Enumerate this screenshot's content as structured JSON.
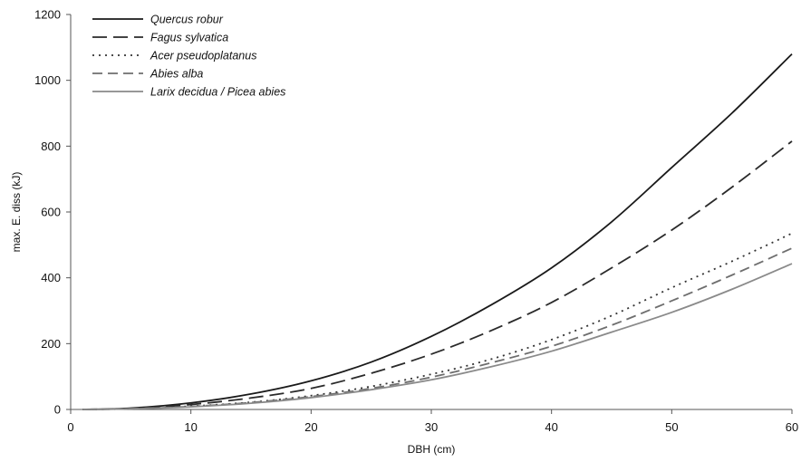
{
  "chart_data": {
    "type": "line",
    "xlabel": "DBH (cm)",
    "ylabel": "max. E. diss (kJ)",
    "xlim": [
      0,
      60
    ],
    "ylim": [
      0,
      1200
    ],
    "xticks": [
      0,
      10,
      20,
      30,
      40,
      50,
      60
    ],
    "yticks": [
      0,
      200,
      400,
      600,
      800,
      1000,
      1200
    ],
    "grid": false,
    "legend_position": "top-left",
    "x": [
      1,
      5,
      10,
      15,
      20,
      25,
      30,
      35,
      40,
      45,
      50,
      55,
      60
    ],
    "series": [
      {
        "name": "Quercus robur",
        "color": "#1a1a1a",
        "dash": "solid",
        "values": [
          0,
          4,
          20,
          47,
          87,
          144,
          222,
          318,
          430,
          570,
          735,
          900,
          1080
        ]
      },
      {
        "name": "Fagus sylvatica",
        "color": "#2a2a2a",
        "dash": "long-dash",
        "values": [
          0,
          3,
          15,
          35,
          64,
          110,
          168,
          240,
          325,
          430,
          545,
          675,
          815
        ]
      },
      {
        "name": "Acer pseudoplatanus",
        "color": "#333333",
        "dash": "dot",
        "values": [
          0,
          2,
          10,
          22,
          42,
          70,
          107,
          153,
          212,
          285,
          370,
          450,
          535
        ]
      },
      {
        "name": "Abies alba",
        "color": "#6e6e6e",
        "dash": "dash",
        "values": [
          0,
          2,
          9,
          21,
          39,
          64,
          98,
          142,
          192,
          256,
          330,
          408,
          490
        ]
      },
      {
        "name": "Larix decidua / Picea abies",
        "color": "#8a8a8a",
        "dash": "solid",
        "values": [
          0,
          2,
          8,
          19,
          36,
          60,
          90,
          130,
          177,
          235,
          295,
          365,
          443
        ]
      }
    ]
  }
}
